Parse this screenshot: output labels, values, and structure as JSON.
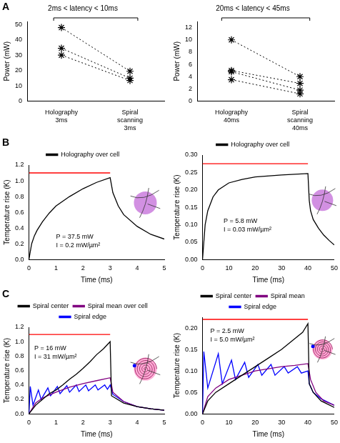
{
  "chart_data": [
    {
      "type": "line",
      "panel": "A",
      "title": "2ms < latency < 10ms",
      "y_label": "Power (mW)",
      "categories": [
        "Holography 3ms",
        "Spiral scanning 3ms"
      ],
      "series": [
        {
          "values": [
            48,
            19.5
          ]
        },
        {
          "values": [
            34.5,
            15
          ]
        },
        {
          "values": [
            30,
            13.5
          ]
        }
      ],
      "color": "#000000",
      "marker": "star",
      "line_style": "dotted",
      "ylim": [
        0,
        52
      ],
      "yticks": [
        0,
        10,
        20,
        30,
        40,
        50
      ],
      "grid": false
    },
    {
      "type": "line",
      "title": "20ms < latency < 45ms",
      "y_label": "Power (mW)",
      "categories": [
        "Holography 40ms",
        "Spiral scanning 40ms"
      ],
      "series": [
        {
          "values": [
            10,
            4
          ]
        },
        {
          "values": [
            5,
            2.9
          ]
        },
        {
          "values": [
            4.8,
            1.8
          ]
        },
        {
          "values": [
            3.5,
            1.2
          ]
        }
      ],
      "color": "#000000",
      "marker": "star",
      "line_style": "dotted",
      "ylim": [
        0,
        13
      ],
      "yticks": [
        0,
        2,
        4,
        6,
        8,
        10,
        12
      ],
      "grid": false
    },
    {
      "type": "line",
      "panel": "B",
      "x_label": "Time (ms)",
      "y_label": "Temperature rise (K)",
      "xlim": [
        0,
        5
      ],
      "xticks": [
        0,
        1,
        2,
        3,
        4,
        5
      ],
      "ylim": [
        0,
        1.2
      ],
      "yticks": [
        {
          "value": 0,
          "label": "0.0"
        },
        0.2,
        0.4,
        0.6,
        0.8,
        {
          "value": 1,
          "label": "1.0"
        },
        1.2
      ],
      "legend": "top",
      "grid": false,
      "annotations": [
        "P = 37.5 mW",
        "I = 0.2 mW/µm²"
      ],
      "series": [
        {
          "name": "Holography over cell",
          "color": "#000000",
          "x": [
            0,
            0.1,
            0.2,
            0.3,
            0.5,
            0.75,
            1,
            1.5,
            2,
            2.5,
            3,
            3.1,
            3.3,
            3.5,
            4,
            4.5,
            5
          ],
          "values": [
            0,
            0.2,
            0.3,
            0.37,
            0.48,
            0.59,
            0.68,
            0.8,
            0.9,
            0.98,
            1.04,
            0.85,
            0.68,
            0.57,
            0.42,
            0.32,
            0.26
          ]
        },
        {
          "color": "#ff0000",
          "x": [
            0,
            3
          ],
          "values": [
            1.1,
            1.1
          ]
        }
      ]
    },
    {
      "type": "line",
      "x_label": "Time (ms)",
      "y_label": "Temperature rise (K)",
      "xlim": [
        0,
        50
      ],
      "xticks": [
        0,
        10,
        20,
        30,
        40,
        50
      ],
      "ylim": [
        0,
        0.3
      ],
      "yticks": [
        {
          "value": 0,
          "label": "0.00"
        },
        0.05,
        {
          "value": 0.1,
          "label": "0.10"
        },
        0.15,
        {
          "value": 0.2,
          "label": "0.20"
        },
        0.25,
        {
          "value": 0.3,
          "label": "0.30"
        }
      ],
      "legend": "top",
      "grid": false,
      "annotations": [
        "P = 5.8 mW",
        "I = 0.03 mW/µm²"
      ],
      "series": [
        {
          "name": "Holography over cell",
          "color": "#000000",
          "x": [
            0,
            1,
            2,
            4,
            6,
            10,
            15,
            20,
            30,
            40,
            40.5,
            41,
            42,
            44,
            46,
            48,
            50
          ],
          "values": [
            0,
            0.1,
            0.14,
            0.18,
            0.2,
            0.22,
            0.23,
            0.237,
            0.243,
            0.247,
            0.17,
            0.14,
            0.115,
            0.09,
            0.07,
            0.055,
            0.042
          ]
        },
        {
          "color": "#ff0000",
          "x": [
            0,
            40
          ],
          "values": [
            0.275,
            0.275
          ]
        }
      ]
    },
    {
      "type": "line",
      "panel": "C",
      "x_label": "Time (ms)",
      "y_label": "Temperature rise (K)",
      "xlim": [
        0,
        5
      ],
      "xticks": [
        0,
        1,
        2,
        3,
        4,
        5
      ],
      "ylim": [
        0,
        1.2
      ],
      "yticks": [
        {
          "value": 0,
          "label": "0.0"
        },
        0.2,
        0.4,
        0.6,
        0.8,
        {
          "value": 1,
          "label": "1.0"
        },
        1.2
      ],
      "legend": "top",
      "grid": false,
      "annotations": [
        "P = 16 mW",
        "I = 31 mW/µm²"
      ],
      "series": [
        {
          "name": "Spiral center",
          "color": "#000000",
          "x": [
            0,
            0.25,
            0.5,
            0.75,
            1,
            1.25,
            1.5,
            1.75,
            2,
            2.25,
            2.5,
            2.75,
            3,
            3.05,
            3.5,
            4,
            4.5,
            5
          ],
          "values": [
            0,
            0.12,
            0.2,
            0.28,
            0.33,
            0.4,
            0.48,
            0.55,
            0.63,
            0.72,
            0.82,
            0.9,
            1.0,
            0.25,
            0.15,
            0.1,
            0.07,
            0.05
          ]
        },
        {
          "name": "Spiral mean over cell",
          "color": "#800080",
          "x": [
            0,
            0.25,
            0.5,
            1,
            1.5,
            2,
            2.5,
            3,
            3.1,
            3.5,
            4,
            4.5,
            5
          ],
          "values": [
            0,
            0.15,
            0.22,
            0.3,
            0.37,
            0.42,
            0.46,
            0.5,
            0.3,
            0.17,
            0.1,
            0.07,
            0.05
          ]
        },
        {
          "name": "Spiral edge",
          "color": "#0000ff",
          "x": [
            0,
            0.05,
            0.15,
            0.35,
            0.45,
            0.7,
            0.8,
            1.05,
            1.15,
            1.4,
            1.5,
            1.75,
            1.85,
            2.1,
            2.2,
            2.45,
            2.55,
            2.8,
            2.9,
            3,
            3.1,
            3.5,
            4,
            4.5,
            5
          ],
          "values": [
            0,
            0.38,
            0.12,
            0.33,
            0.2,
            0.36,
            0.25,
            0.38,
            0.28,
            0.39,
            0.3,
            0.4,
            0.31,
            0.4,
            0.32,
            0.4,
            0.33,
            0.4,
            0.34,
            0.4,
            0.27,
            0.17,
            0.1,
            0.07,
            0.05
          ]
        },
        {
          "color": "#ff0000",
          "x": [
            0,
            3
          ],
          "values": [
            1.1,
            1.1
          ]
        }
      ]
    },
    {
      "type": "line",
      "x_label": "Time (ms)",
      "y_label": "Temperature rise (K)",
      "xlim": [
        0,
        50
      ],
      "xticks": [
        0,
        10,
        20,
        30,
        40,
        50
      ],
      "ylim": [
        0,
        0.225
      ],
      "yticks": [
        {
          "value": 0,
          "label": "0.00"
        },
        0.05,
        {
          "value": 0.1,
          "label": "0.10"
        },
        0.15,
        {
          "value": 0.2,
          "label": "0.20"
        }
      ],
      "legend": "top",
      "grid": false,
      "annotations": [
        "P = 2.5 mW",
        "I = 5.0 mW/µm²"
      ],
      "series": [
        {
          "name": "Spiral center",
          "color": "#000000",
          "x": [
            0,
            2,
            5,
            10,
            15,
            20,
            25,
            30,
            35,
            38,
            40,
            40.5,
            42,
            45,
            50
          ],
          "values": [
            0,
            0.03,
            0.05,
            0.07,
            0.09,
            0.11,
            0.13,
            0.15,
            0.175,
            0.19,
            0.21,
            0.07,
            0.05,
            0.03,
            0.015
          ]
        },
        {
          "name": "Spiral mean",
          "color": "#800080",
          "x": [
            0,
            2,
            5,
            10,
            15,
            20,
            25,
            30,
            35,
            40,
            41,
            43,
            46,
            50
          ],
          "values": [
            0,
            0.04,
            0.06,
            0.08,
            0.09,
            0.1,
            0.105,
            0.11,
            0.113,
            0.117,
            0.08,
            0.05,
            0.03,
            0.02
          ]
        },
        {
          "name": "Spiral edge",
          "color": "#0000ff",
          "x": [
            0,
            0.5,
            2,
            6,
            7.5,
            11,
            12.5,
            16,
            17.5,
            21,
            22.5,
            26,
            27.5,
            31,
            32.5,
            36,
            37.5,
            40,
            40.5,
            42,
            45,
            50
          ],
          "values": [
            0,
            0.145,
            0.06,
            0.14,
            0.07,
            0.125,
            0.08,
            0.12,
            0.085,
            0.115,
            0.09,
            0.115,
            0.09,
            0.11,
            0.095,
            0.11,
            0.095,
            0.1,
            0.07,
            0.05,
            0.035,
            0.02
          ]
        },
        {
          "color": "#ff0000",
          "x": [
            0,
            40
          ],
          "values": [
            0.22,
            0.22
          ]
        }
      ]
    }
  ]
}
